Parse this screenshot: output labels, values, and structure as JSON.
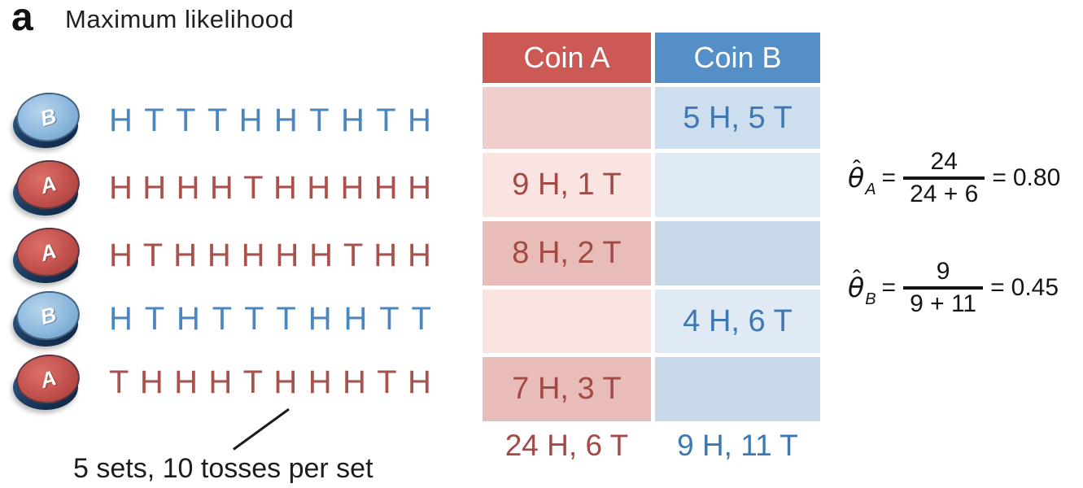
{
  "panel": {
    "label": "a",
    "title": "Maximum likelihood"
  },
  "caption": "5 sets, 10 tosses per set",
  "sequences": [
    {
      "coin": "B",
      "tosses": [
        "H",
        "T",
        "T",
        "T",
        "H",
        "H",
        "T",
        "H",
        "T",
        "H"
      ]
    },
    {
      "coin": "A",
      "tosses": [
        "H",
        "H",
        "H",
        "H",
        "T",
        "H",
        "H",
        "H",
        "H",
        "H"
      ]
    },
    {
      "coin": "A",
      "tosses": [
        "H",
        "T",
        "H",
        "H",
        "H",
        "H",
        "H",
        "T",
        "H",
        "H"
      ]
    },
    {
      "coin": "B",
      "tosses": [
        "H",
        "T",
        "H",
        "T",
        "T",
        "T",
        "H",
        "H",
        "T",
        "T"
      ]
    },
    {
      "coin": "A",
      "tosses": [
        "T",
        "H",
        "H",
        "H",
        "T",
        "H",
        "H",
        "H",
        "T",
        "H"
      ]
    }
  ],
  "table": {
    "headers": {
      "a": "Coin A",
      "b": "Coin B"
    },
    "rows": [
      {
        "a": "",
        "b": "5 H, 5 T"
      },
      {
        "a": "9 H, 1 T",
        "b": ""
      },
      {
        "a": "8 H, 2 T",
        "b": ""
      },
      {
        "a": "",
        "b": "4 H, 6 T"
      },
      {
        "a": "7 H, 3 T",
        "b": ""
      }
    ],
    "totals": {
      "a": "24 H, 6 T",
      "b": "9 H, 11 T"
    }
  },
  "formulas": [
    {
      "symbol": "θ",
      "hat": "ˆ",
      "subscript": "A",
      "equals": "=",
      "numerator": "24",
      "denominator": "24 + 6",
      "equals2": "=",
      "result": "0.80"
    },
    {
      "symbol": "θ",
      "hat": "ˆ",
      "subscript": "B",
      "equals": "=",
      "numerator": "9",
      "denominator": "9 + 11",
      "equals2": "=",
      "result": "0.45"
    }
  ],
  "colors": {
    "coin_a_face": "#c1504b",
    "coin_b_face": "#8cb8dd",
    "coin_rim": "#1c3c60",
    "header_a_bg": "#cd5955",
    "header_b_bg": "#548fc7",
    "cell_a_mid": "#f0cecc",
    "cell_a_light": "#f9e4e2",
    "cell_a_dark": "#e7bcb9",
    "cell_b_mid": "#cddeee",
    "cell_b_light": "#dfeaf4",
    "cell_b_dark": "#c8d9ea",
    "table_text_a": "#a34946",
    "table_text_b": "#3f78b0",
    "toss_text_a": "#a8514d",
    "toss_text_b": "#4b86bf"
  }
}
